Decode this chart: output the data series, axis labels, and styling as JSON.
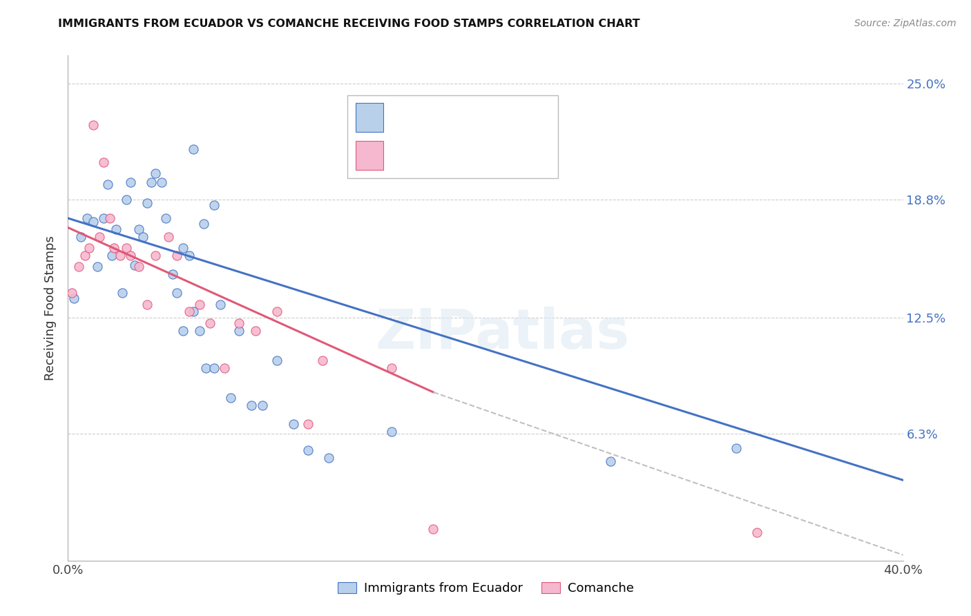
{
  "title": "IMMIGRANTS FROM ECUADOR VS COMANCHE RECEIVING FOOD STAMPS CORRELATION CHART",
  "source": "Source: ZipAtlas.com",
  "ylabel": "Receiving Food Stamps",
  "ytick_labels": [
    "25.0%",
    "18.8%",
    "12.5%",
    "6.3%"
  ],
  "ytick_values": [
    0.25,
    0.188,
    0.125,
    0.063
  ],
  "xlim": [
    0.0,
    0.4
  ],
  "ylim": [
    -0.005,
    0.265
  ],
  "legend_blue_label": "Immigrants from Ecuador",
  "legend_pink_label": "Comanche",
  "blue_color": "#b8d0ea",
  "pink_color": "#f5b8cf",
  "line_blue": "#4472c4",
  "line_pink": "#e05878",
  "line_extend_color": "#c0c0c0",
  "watermark": "ZIPatlas",
  "blue_line_x0": 0.0,
  "blue_line_x1": 0.4,
  "blue_line_y0": 0.178,
  "blue_line_y1": 0.038,
  "pink_line_solid_x0": 0.0,
  "pink_line_solid_x1": 0.175,
  "pink_line_y0": 0.173,
  "pink_line_y1": 0.085,
  "pink_line_dash_x0": 0.175,
  "pink_line_dash_x1": 0.4,
  "pink_line_dash_y0": 0.085,
  "pink_line_dash_y1": -0.002,
  "blue_scatter_x": [
    0.003,
    0.006,
    0.009,
    0.012,
    0.014,
    0.017,
    0.019,
    0.021,
    0.023,
    0.026,
    0.028,
    0.03,
    0.032,
    0.034,
    0.036,
    0.038,
    0.04,
    0.042,
    0.045,
    0.047,
    0.05,
    0.052,
    0.055,
    0.058,
    0.06,
    0.063,
    0.066,
    0.07,
    0.073,
    0.078,
    0.082,
    0.088,
    0.093,
    0.1,
    0.108,
    0.115,
    0.125,
    0.155,
    0.26,
    0.32,
    0.06,
    0.065,
    0.07,
    0.055
  ],
  "blue_scatter_y": [
    0.135,
    0.168,
    0.178,
    0.176,
    0.152,
    0.178,
    0.196,
    0.158,
    0.172,
    0.138,
    0.188,
    0.197,
    0.153,
    0.172,
    0.168,
    0.186,
    0.197,
    0.202,
    0.197,
    0.178,
    0.148,
    0.138,
    0.118,
    0.158,
    0.128,
    0.118,
    0.098,
    0.098,
    0.132,
    0.082,
    0.118,
    0.078,
    0.078,
    0.102,
    0.068,
    0.054,
    0.05,
    0.064,
    0.048,
    0.055,
    0.215,
    0.175,
    0.185,
    0.162
  ],
  "pink_scatter_x": [
    0.002,
    0.005,
    0.008,
    0.01,
    0.012,
    0.015,
    0.017,
    0.02,
    0.022,
    0.025,
    0.028,
    0.03,
    0.034,
    0.038,
    0.042,
    0.048,
    0.052,
    0.058,
    0.063,
    0.068,
    0.075,
    0.082,
    0.09,
    0.1,
    0.115,
    0.122,
    0.155,
    0.175,
    0.33
  ],
  "pink_scatter_y": [
    0.138,
    0.152,
    0.158,
    0.162,
    0.228,
    0.168,
    0.208,
    0.178,
    0.162,
    0.158,
    0.162,
    0.158,
    0.152,
    0.132,
    0.158,
    0.168,
    0.158,
    0.128,
    0.132,
    0.122,
    0.098,
    0.122,
    0.118,
    0.128,
    0.068,
    0.102,
    0.098,
    0.012,
    0.01
  ]
}
